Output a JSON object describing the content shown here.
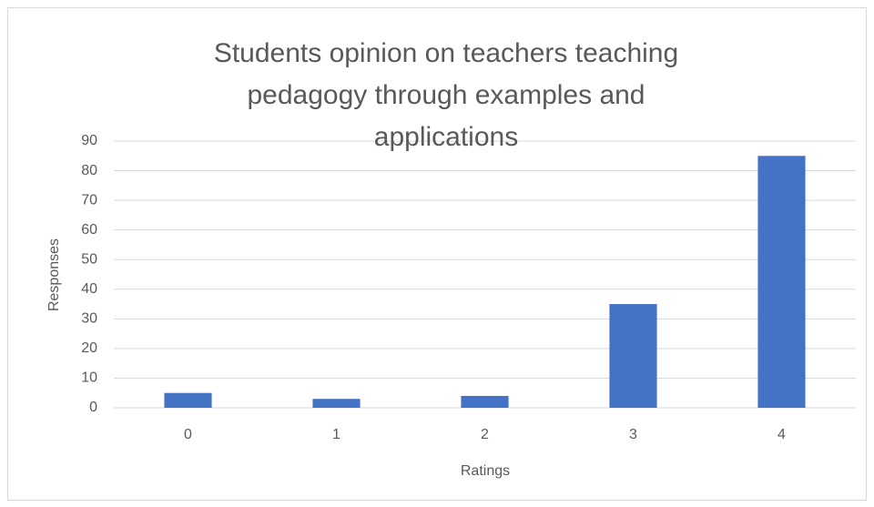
{
  "chart_data": {
    "type": "bar",
    "title": "Students opinion on teachers teaching pedagogy through examples and applications",
    "x_label": "Ratings",
    "y_label": "Responses",
    "categories": [
      "0",
      "1",
      "2",
      "3",
      "4"
    ],
    "values": [
      5,
      3,
      4,
      35,
      85
    ],
    "color": "#4472c4",
    "ylim": [
      0,
      90
    ],
    "yticks": [
      0,
      10,
      20,
      30,
      40,
      50,
      60,
      70,
      80,
      90
    ],
    "grid": true
  }
}
